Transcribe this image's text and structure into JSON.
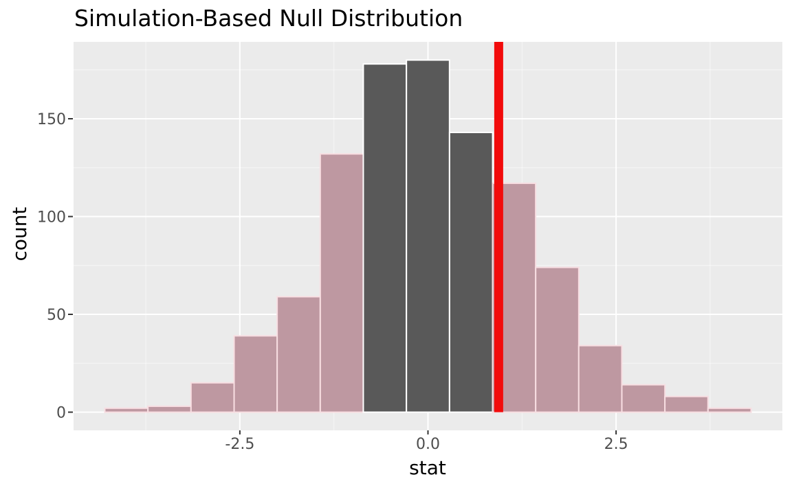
{
  "figure": {
    "background": "#FFFFFF"
  },
  "chart_data": {
    "type": "bar",
    "chart_kind": "histogram",
    "title": "Simulation-Based Null Distribution",
    "xlabel": "stat",
    "ylabel": "count",
    "xlim": [
      -4.71,
      4.71
    ],
    "ylim": [
      -9.3,
      189.3
    ],
    "grid": true,
    "legend": "none",
    "total_reps": 1000,
    "bin_width": 0.5725,
    "bins": [
      {
        "center": -4.008,
        "count": 2,
        "shaded": true
      },
      {
        "center": -3.435,
        "count": 3,
        "shaded": true
      },
      {
        "center": -2.863,
        "count": 15,
        "shaded": true
      },
      {
        "center": -2.29,
        "count": 39,
        "shaded": true
      },
      {
        "center": -1.718,
        "count": 59,
        "shaded": true
      },
      {
        "center": -1.145,
        "count": 132,
        "shaded": true
      },
      {
        "center": -0.573,
        "count": 178,
        "shaded": false
      },
      {
        "center": 0.0,
        "count": 180,
        "shaded": false
      },
      {
        "center": 0.573,
        "count": 143,
        "shaded": false
      },
      {
        "center": 1.145,
        "count": 117,
        "shaded": true
      },
      {
        "center": 1.718,
        "count": 74,
        "shaded": true
      },
      {
        "center": 2.29,
        "count": 34,
        "shaded": true
      },
      {
        "center": 2.863,
        "count": 14,
        "shaded": true
      },
      {
        "center": 3.435,
        "count": 8,
        "shaded": true
      },
      {
        "center": 4.008,
        "count": 2,
        "shaded": true
      }
    ],
    "observed_stat": 0.94,
    "x_ticks": {
      "major": [
        {
          "value": -2.5,
          "label": "-2.5"
        },
        {
          "value": 0,
          "label": "0.0"
        },
        {
          "value": 2.5,
          "label": "2.5"
        }
      ],
      "minor": [
        -3.75,
        -1.25,
        1.25,
        3.75
      ]
    },
    "y_ticks": {
      "major": [
        {
          "value": 0,
          "label": "0"
        },
        {
          "value": 50,
          "label": "50"
        },
        {
          "value": 100,
          "label": "100"
        },
        {
          "value": 150,
          "label": "150"
        }
      ],
      "minor": [
        25,
        75,
        125,
        175
      ]
    },
    "colors": {
      "panel_bg": "#EBEBEB",
      "grid_major": "#FFFFFF",
      "grid_minor": "#FFFFFF",
      "bar_fill": "#595959",
      "bar_stroke": "#FFFFFF",
      "shaded_fill": "#BE98A1",
      "shaded_stroke": "#F8DEE2",
      "observed_line": "#F20B0B",
      "tick_label": "#4D4D4D",
      "tick_mark": "#333333",
      "text": "#000000"
    }
  }
}
